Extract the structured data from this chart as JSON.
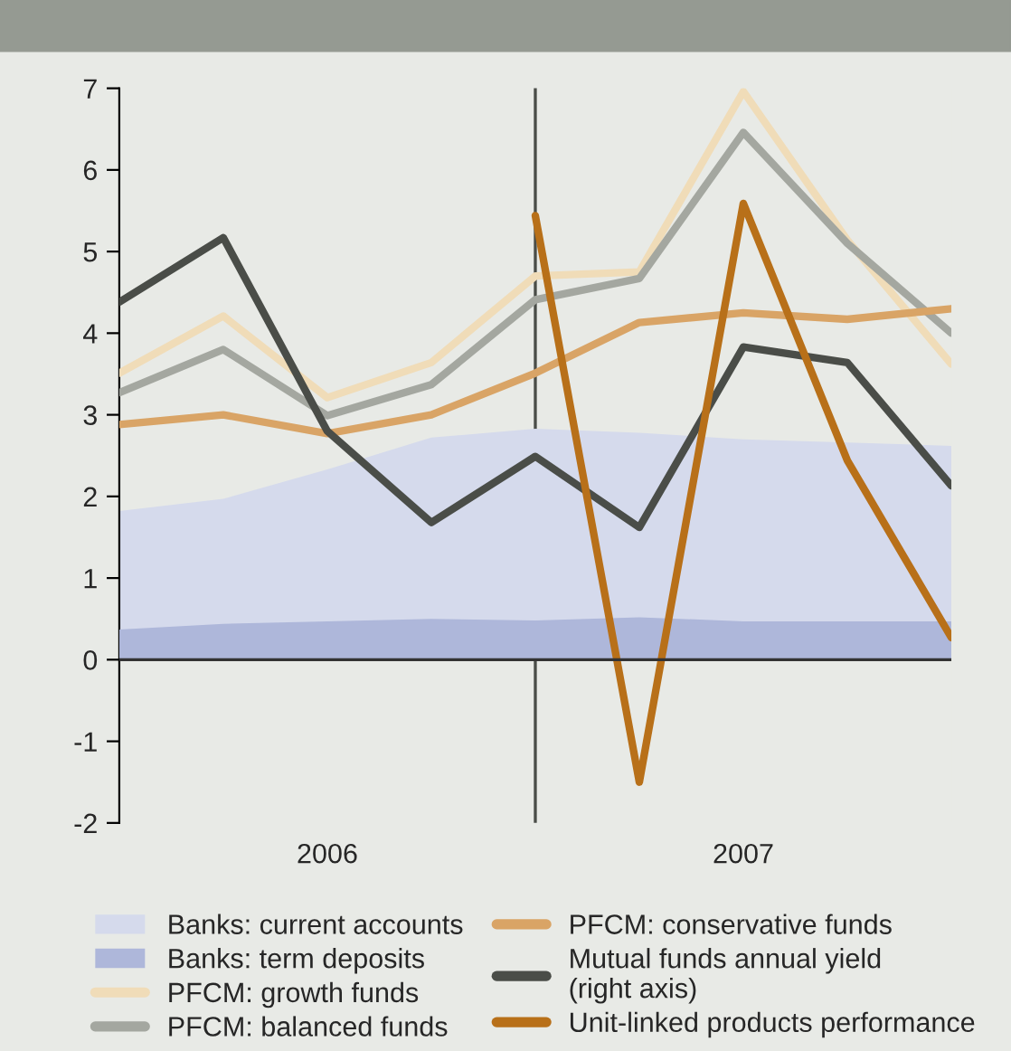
{
  "chart_data": {
    "type": "line",
    "x": [
      2006.0,
      2006.25,
      2006.5,
      2006.75,
      2007.0,
      2007.25,
      2007.5,
      2007.75,
      2008.0
    ],
    "xlim": [
      2006.0,
      2008.0
    ],
    "xticks": [
      {
        "value": 2006.5,
        "label": "2006"
      },
      {
        "value": 2007.5,
        "label": "2007"
      }
    ],
    "ylim": [
      -2,
      7
    ],
    "yticks": [
      -2,
      -1,
      0,
      1,
      2,
      3,
      4,
      5,
      6,
      7
    ],
    "grid": false,
    "legend": "bottom",
    "ref_lines": [
      {
        "axis": "x",
        "value": 2007.0,
        "color": "#4a4d48"
      },
      {
        "axis": "y",
        "value": 0,
        "color": "#333333"
      }
    ],
    "series": [
      {
        "name": "Banks: current accounts",
        "type": "area",
        "color": "#d5daec",
        "values": [
          1.82,
          1.97,
          2.33,
          2.72,
          2.83,
          2.78,
          2.7,
          2.66,
          2.62
        ]
      },
      {
        "name": "Banks: term deposits",
        "type": "area",
        "color": "#aeb7da",
        "values": [
          0.37,
          0.44,
          0.47,
          0.5,
          0.48,
          0.52,
          0.47,
          0.47,
          0.47
        ]
      },
      {
        "name": "PFCM: growth funds",
        "color": "#f0dcb8",
        "values": [
          3.51,
          4.21,
          3.21,
          3.64,
          4.7,
          4.75,
          6.96,
          5.14,
          3.62
        ]
      },
      {
        "name": "PFCM: balanced funds",
        "color": "#a4a7a0",
        "values": [
          3.27,
          3.8,
          2.99,
          3.37,
          4.41,
          4.67,
          6.46,
          5.1,
          4.0
        ]
      },
      {
        "name": "PFCM: conservative funds",
        "color": "#d9a466",
        "values": [
          2.88,
          3.0,
          2.77,
          3.0,
          3.51,
          4.13,
          4.25,
          4.17,
          4.3
        ]
      },
      {
        "name": "Mutual funds annual yield\n(right axis)",
        "color": "#4a4d48",
        "values": [
          4.38,
          5.17,
          2.8,
          1.68,
          2.49,
          1.62,
          3.83,
          3.64,
          2.13
        ]
      },
      {
        "name": "Unit-linked products performance",
        "color": "#b87019",
        "values": [
          null,
          null,
          null,
          null,
          5.44,
          -1.5,
          5.59,
          2.44,
          0.27
        ]
      }
    ]
  }
}
